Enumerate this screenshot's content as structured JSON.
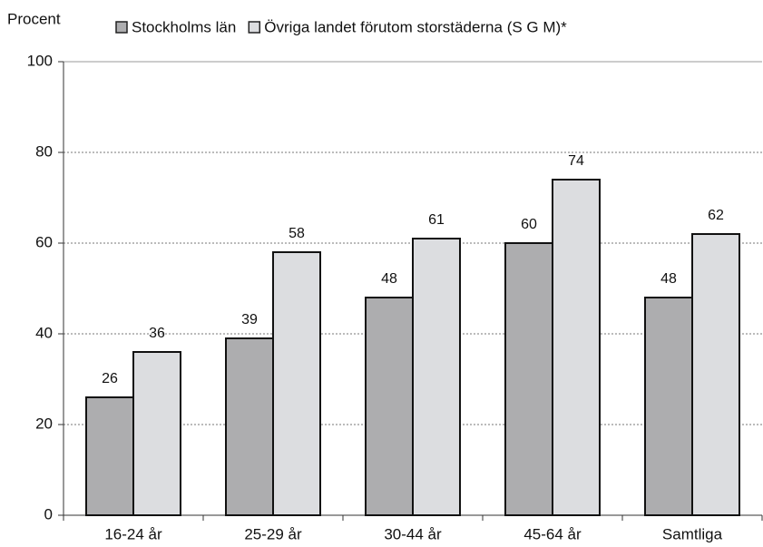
{
  "chart_data": {
    "type": "bar",
    "y_label": "Procent",
    "categories": [
      "16-24 år",
      "25-29 år",
      "30-44 år",
      "45-64 år",
      "Samtliga"
    ],
    "series": [
      {
        "name": "Stockholms län",
        "color": "#adadaf",
        "values": [
          26,
          39,
          48,
          60,
          48
        ]
      },
      {
        "name": "Övriga landet förutom storstäderna (S G M)*",
        "color": "#dcdde0",
        "values": [
          36,
          58,
          61,
          74,
          62
        ]
      }
    ],
    "ylim": [
      0,
      100
    ],
    "yticks": [
      0,
      20,
      40,
      60,
      80,
      100
    ],
    "grid": true
  }
}
